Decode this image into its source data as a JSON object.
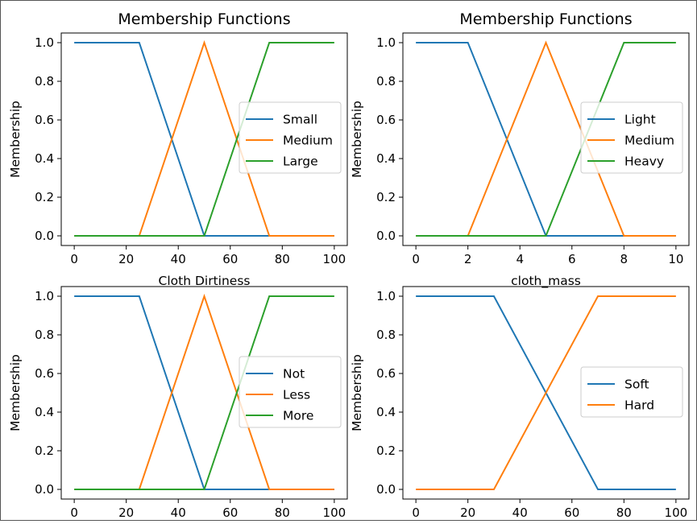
{
  "chart_data": [
    {
      "type": "line",
      "title": "Membership Functions",
      "xlabel": "Cloth Dirtiness",
      "ylabel": "Membership",
      "xlim": [
        -5,
        105
      ],
      "ylim": [
        -0.05,
        1.05
      ],
      "xticks": [
        "0",
        "20",
        "40",
        "60",
        "80",
        "100"
      ],
      "yticks": [
        "0.0",
        "0.2",
        "0.4",
        "0.6",
        "0.8",
        "1.0"
      ],
      "legend_position": "center-right",
      "series": [
        {
          "name": "Small",
          "color": "#1f77b4",
          "x": [
            0,
            25,
            50,
            100
          ],
          "y": [
            1,
            1,
            0,
            0
          ]
        },
        {
          "name": "Medium",
          "color": "#ff7f0e",
          "x": [
            0,
            25,
            50,
            75,
            100
          ],
          "y": [
            0,
            0,
            1,
            0,
            0
          ]
        },
        {
          "name": "Large",
          "color": "#2ca02c",
          "x": [
            0,
            50,
            75,
            100
          ],
          "y": [
            0,
            0,
            1,
            1
          ]
        }
      ]
    },
    {
      "type": "line",
      "title": "Membership Functions",
      "xlabel": "cloth_mass",
      "ylabel": "Membership",
      "xlim": [
        -0.5,
        10.5
      ],
      "ylim": [
        -0.05,
        1.05
      ],
      "xticks": [
        "0",
        "2",
        "4",
        "6",
        "8",
        "10"
      ],
      "yticks": [
        "0.0",
        "0.2",
        "0.4",
        "0.6",
        "0.8",
        "1.0"
      ],
      "legend_position": "center-right",
      "series": [
        {
          "name": "Light",
          "color": "#1f77b4",
          "x": [
            0,
            2,
            5,
            10
          ],
          "y": [
            1,
            1,
            0,
            0
          ]
        },
        {
          "name": "Medium",
          "color": "#ff7f0e",
          "x": [
            0,
            2,
            5,
            8,
            10
          ],
          "y": [
            0,
            0,
            1,
            0,
            0
          ]
        },
        {
          "name": "Heavy",
          "color": "#2ca02c",
          "x": [
            0,
            5,
            8,
            10
          ],
          "y": [
            0,
            0,
            1,
            1
          ]
        }
      ]
    },
    {
      "type": "line",
      "title": "",
      "xlabel": "",
      "ylabel": "Membership",
      "xlim": [
        -5,
        105
      ],
      "ylim": [
        -0.05,
        1.05
      ],
      "xticks": [
        "0",
        "20",
        "40",
        "60",
        "80",
        "100"
      ],
      "yticks": [
        "0.0",
        "0.2",
        "0.4",
        "0.6",
        "0.8",
        "1.0"
      ],
      "legend_position": "center-right",
      "series": [
        {
          "name": "Not",
          "color": "#1f77b4",
          "x": [
            0,
            25,
            50,
            100
          ],
          "y": [
            1,
            1,
            0,
            0
          ]
        },
        {
          "name": "Less",
          "color": "#ff7f0e",
          "x": [
            0,
            25,
            50,
            75,
            100
          ],
          "y": [
            0,
            0,
            1,
            0,
            0
          ]
        },
        {
          "name": "More",
          "color": "#2ca02c",
          "x": [
            0,
            50,
            75,
            100
          ],
          "y": [
            0,
            0,
            1,
            1
          ]
        }
      ]
    },
    {
      "type": "line",
      "title": "",
      "xlabel": "",
      "ylabel": "Membership",
      "xlim": [
        -5,
        105
      ],
      "ylim": [
        -0.05,
        1.05
      ],
      "xticks": [
        "0",
        "20",
        "40",
        "60",
        "80",
        "100"
      ],
      "yticks": [
        "0.0",
        "0.2",
        "0.4",
        "0.6",
        "0.8",
        "1.0"
      ],
      "legend_position": "center-right",
      "series": [
        {
          "name": "Soft",
          "color": "#1f77b4",
          "x": [
            0,
            30,
            70,
            100
          ],
          "y": [
            1,
            1,
            0,
            0
          ]
        },
        {
          "name": "Hard",
          "color": "#ff7f0e",
          "x": [
            0,
            30,
            70,
            100
          ],
          "y": [
            0,
            0,
            1,
            1
          ]
        }
      ]
    }
  ]
}
